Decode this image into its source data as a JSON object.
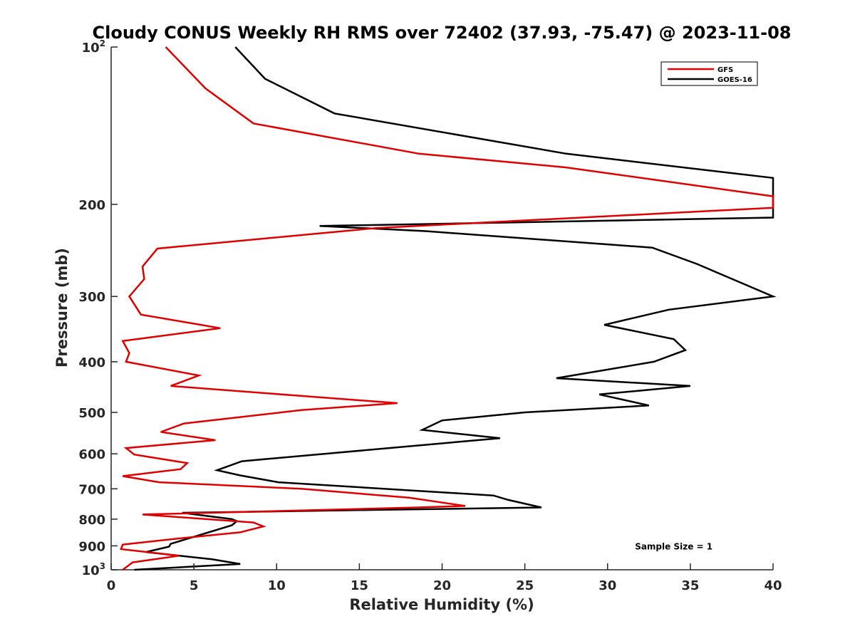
{
  "chart_data": {
    "type": "line",
    "title": "Cloudy CONUS Weekly RH RMS over 72402 (37.93, -75.47) @ 2023-11-08",
    "xlabel": "Relative Humidity (%)",
    "ylabel": "Pressure (mb)",
    "xlim": [
      0,
      40
    ],
    "ylim": [
      100,
      1000
    ],
    "y_scale": "log",
    "y_reversed": true,
    "grid": false,
    "legend_position": "top-right",
    "x_ticks": [
      0,
      5,
      10,
      15,
      20,
      25,
      30,
      35,
      40
    ],
    "x_tick_labels": [
      "0",
      "5",
      "10",
      "15",
      "20",
      "25",
      "30",
      "35",
      "40"
    ],
    "y_ticks": [
      {
        "value": 100,
        "label": "10",
        "exp": "2"
      },
      {
        "value": 200,
        "label": "200",
        "exp": ""
      },
      {
        "value": 300,
        "label": "300",
        "exp": ""
      },
      {
        "value": 400,
        "label": "400",
        "exp": ""
      },
      {
        "value": 500,
        "label": "500",
        "exp": ""
      },
      {
        "value": 600,
        "label": "600",
        "exp": ""
      },
      {
        "value": 700,
        "label": "700",
        "exp": ""
      },
      {
        "value": 800,
        "label": "800",
        "exp": ""
      },
      {
        "value": 900,
        "label": "900",
        "exp": ""
      },
      {
        "value": 1000,
        "label": "10",
        "exp": "3"
      }
    ],
    "series": [
      {
        "name": "GFS",
        "color": "#e00000",
        "points": [
          [
            3.3,
            100
          ],
          [
            5.7,
            120
          ],
          [
            8.6,
            140
          ],
          [
            18.6,
            160
          ],
          [
            27.5,
            170
          ],
          [
            40.0,
            193
          ],
          [
            40.0,
            203
          ],
          [
            16.0,
            222
          ],
          [
            2.8,
            243
          ],
          [
            1.9,
            263
          ],
          [
            2.0,
            278
          ],
          [
            1.1,
            300
          ],
          [
            1.8,
            325
          ],
          [
            6.6,
            345
          ],
          [
            0.7,
            365
          ],
          [
            1.1,
            385
          ],
          [
            0.9,
            400
          ],
          [
            5.3,
            425
          ],
          [
            3.6,
            445
          ],
          [
            11.5,
            465
          ],
          [
            17.3,
            480
          ],
          [
            11.5,
            495
          ],
          [
            4.4,
            525
          ],
          [
            3.0,
            545
          ],
          [
            6.3,
            565
          ],
          [
            0.9,
            585
          ],
          [
            1.4,
            602
          ],
          [
            4.6,
            625
          ],
          [
            4.2,
            642
          ],
          [
            0.7,
            662
          ],
          [
            2.9,
            680
          ],
          [
            11.5,
            700
          ],
          [
            18.0,
            728
          ],
          [
            19.3,
            738
          ],
          [
            21.4,
            755
          ],
          [
            18.5,
            760
          ],
          [
            1.9,
            784
          ],
          [
            8.6,
            812
          ],
          [
            9.2,
            826
          ],
          [
            7.8,
            848
          ],
          [
            4.0,
            872
          ],
          [
            0.7,
            895
          ],
          [
            0.6,
            913
          ],
          [
            4.1,
            940
          ],
          [
            1.3,
            968
          ],
          [
            0.7,
            1000
          ]
        ]
      },
      {
        "name": "GOES-16",
        "color": "#000000",
        "points": [
          [
            7.5,
            100
          ],
          [
            9.3,
            115
          ],
          [
            13.5,
            134
          ],
          [
            27.5,
            160
          ],
          [
            40.0,
            178
          ],
          [
            40.0,
            212
          ],
          [
            12.6,
            220
          ],
          [
            19.0,
            225
          ],
          [
            32.7,
            242
          ],
          [
            35.4,
            260
          ],
          [
            37.2,
            275
          ],
          [
            40.0,
            300
          ],
          [
            33.7,
            318
          ],
          [
            29.8,
            340
          ],
          [
            34.0,
            362
          ],
          [
            34.7,
            380
          ],
          [
            32.8,
            400
          ],
          [
            26.9,
            430
          ],
          [
            35.0,
            445
          ],
          [
            29.5,
            462
          ],
          [
            32.5,
            485
          ],
          [
            25.0,
            500
          ],
          [
            20.0,
            518
          ],
          [
            18.8,
            540
          ],
          [
            23.5,
            560
          ],
          [
            7.9,
            620
          ],
          [
            6.4,
            645
          ],
          [
            7.8,
            660
          ],
          [
            10.1,
            680
          ],
          [
            23.1,
            721
          ],
          [
            24.0,
            735
          ],
          [
            26.0,
            760
          ],
          [
            16.0,
            768
          ],
          [
            4.3,
            778
          ],
          [
            7.3,
            800
          ],
          [
            7.6,
            807
          ],
          [
            7.3,
            822
          ],
          [
            3.6,
            892
          ],
          [
            3.5,
            903
          ],
          [
            2.1,
            925
          ],
          [
            6.1,
            955
          ],
          [
            7.8,
            975
          ],
          [
            1.4,
            1000
          ]
        ]
      }
    ],
    "annotations": [
      {
        "text": "Sample Size = 1",
        "x": 34.0,
        "y": 900
      }
    ]
  }
}
